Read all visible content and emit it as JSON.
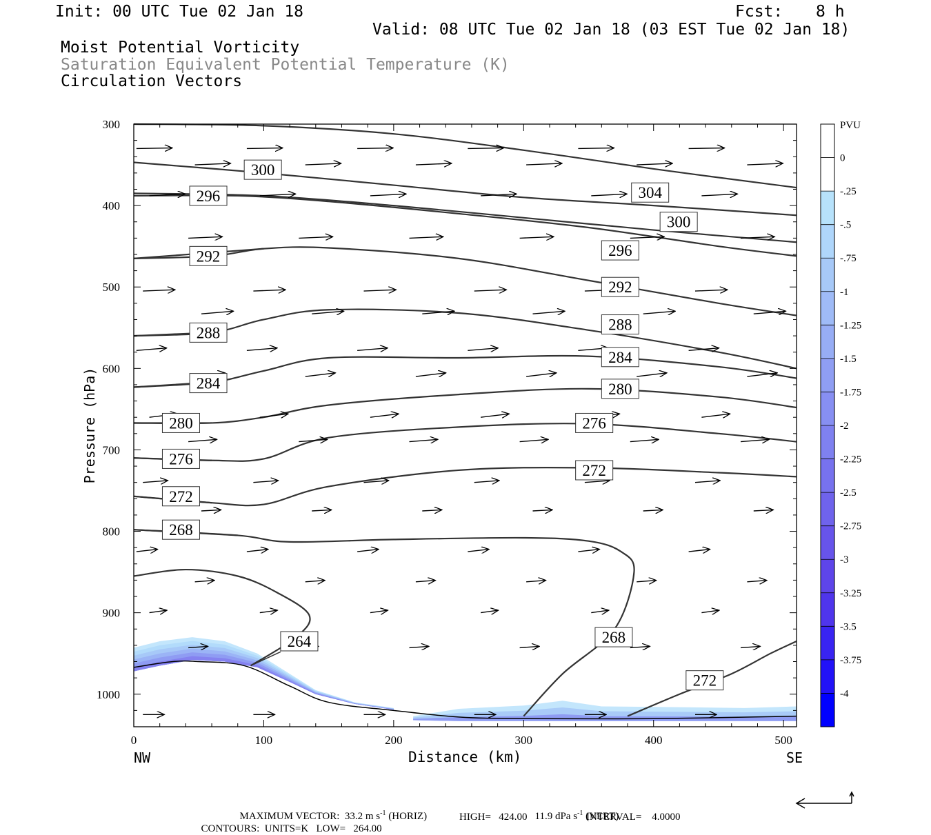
{
  "header": {
    "init": "Init: 00 UTC Tue 02 Jan 18",
    "fcst_label": "Fcst:",
    "fcst_value": "8 h",
    "valid": "Valid: 08 UTC Tue 02 Jan 18 (03 EST Tue 02 Jan 18)",
    "field1": "Moist Potential Vorticity",
    "field2": "Saturation Equivalent Potential Temperature (K)",
    "field3": "Circulation Vectors"
  },
  "chart_data": {
    "type": "cross-section",
    "xlabel": "Distance (km)",
    "ylabel": "Pressure (hPa)",
    "xlim": [
      0,
      510
    ],
    "ylim": [
      1040,
      300
    ],
    "x_ticks": [
      0,
      100,
      200,
      300,
      400,
      500
    ],
    "y_ticks": [
      300,
      400,
      500,
      600,
      700,
      800,
      900,
      1000
    ],
    "x_end_labels": [
      "NW",
      "SE"
    ],
    "contours": [
      {
        "label": "304",
        "label_pos": [
          383,
          384
        ],
        "points": [
          [
            0,
            300
          ],
          [
            100,
            302
          ],
          [
            200,
            312
          ],
          [
            300,
            332
          ],
          [
            400,
            355
          ],
          [
            510,
            378
          ]
        ]
      },
      {
        "label": "300",
        "label_pos": [
          85,
          356
        ],
        "points": [
          [
            0,
            347
          ],
          [
            100,
            360
          ],
          [
            200,
            375
          ],
          [
            300,
            390
          ],
          [
            400,
            400
          ],
          [
            510,
            412
          ]
        ]
      },
      {
        "label": "300",
        "label_pos": [
          405,
          420
        ],
        "points": [
          [
            0,
            385
          ],
          [
            100,
            388
          ],
          [
            200,
            400
          ],
          [
            300,
            415
          ],
          [
            400,
            430
          ],
          [
            510,
            445
          ]
        ]
      },
      {
        "label": "296",
        "label_pos": [
          43,
          388
        ],
        "points": [
          [
            0,
            388
          ],
          [
            80,
            388
          ],
          [
            150,
            395
          ],
          [
            250,
            410
          ],
          [
            350,
            427
          ],
          [
            450,
            450
          ],
          [
            510,
            462
          ]
        ]
      },
      {
        "label": "296",
        "label_pos": [
          360,
          455
        ],
        "points": [
          [
            0,
            465
          ],
          [
            60,
            462
          ],
          [
            100,
            453
          ],
          [
            150,
            452
          ],
          [
            250,
            465
          ],
          [
            350,
            492
          ],
          [
            450,
            520
          ],
          [
            510,
            535
          ]
        ]
      },
      {
        "label": "292",
        "label_pos": [
          43,
          462
        ],
        "points": [
          [
            0,
            465
          ],
          [
            100,
            453
          ]
        ]
      },
      {
        "label": "292",
        "label_pos": [
          360,
          500
        ],
        "points": [
          [
            0,
            560
          ],
          [
            60,
            556
          ],
          [
            100,
            540
          ],
          [
            150,
            528
          ],
          [
            250,
            532
          ],
          [
            350,
            553
          ],
          [
            450,
            580
          ],
          [
            510,
            600
          ]
        ]
      },
      {
        "label": "288",
        "label_pos": [
          43,
          556
        ],
        "points": [
          [
            0,
            560
          ],
          [
            60,
            556
          ]
        ]
      },
      {
        "label": "288",
        "label_pos": [
          360,
          546
        ],
        "points": [
          [
            0,
            623
          ],
          [
            60,
            617
          ],
          [
            100,
            603
          ],
          [
            150,
            587
          ],
          [
            250,
            587
          ],
          [
            350,
            585
          ],
          [
            450,
            598
          ],
          [
            510,
            612
          ]
        ]
      },
      {
        "label": "284",
        "label_pos": [
          43,
          618
        ],
        "points": [
          [
            0,
            623
          ],
          [
            60,
            617
          ]
        ]
      },
      {
        "label": "284",
        "label_pos": [
          360,
          586
        ],
        "points": [
          [
            0,
            667
          ],
          [
            60,
            667
          ],
          [
            100,
            660
          ],
          [
            150,
            645
          ],
          [
            250,
            632
          ],
          [
            350,
            625
          ],
          [
            450,
            635
          ],
          [
            510,
            648
          ]
        ]
      },
      {
        "label": "280",
        "label_pos": [
          22,
          667
        ],
        "points": [
          [
            0,
            667
          ],
          [
            60,
            667
          ]
        ]
      },
      {
        "label": "280",
        "label_pos": [
          360,
          625
        ],
        "points": [
          [
            0,
            710
          ],
          [
            60,
            713
          ],
          [
            100,
            711
          ],
          [
            150,
            685
          ],
          [
            250,
            672
          ],
          [
            350,
            668
          ],
          [
            450,
            680
          ],
          [
            510,
            690
          ]
        ]
      },
      {
        "label": "276",
        "label_pos": [
          22,
          711
        ],
        "points": [
          [
            0,
            710
          ],
          [
            60,
            713
          ]
        ]
      },
      {
        "label": "276",
        "label_pos": [
          340,
          667
        ],
        "points": [
          [
            0,
            757
          ],
          [
            60,
            765
          ],
          [
            100,
            767
          ],
          [
            150,
            745
          ],
          [
            250,
            725
          ],
          [
            350,
            722
          ],
          [
            450,
            728
          ],
          [
            510,
            733
          ]
        ]
      },
      {
        "label": "272",
        "label_pos": [
          22,
          757
        ],
        "points": [
          [
            0,
            757
          ],
          [
            60,
            765
          ]
        ]
      },
      {
        "label": "272",
        "label_pos": [
          340,
          725
        ],
        "points": [
          [
            0,
            798
          ],
          [
            80,
            805
          ],
          [
            120,
            813
          ],
          [
            200,
            810
          ],
          [
            300,
            808
          ],
          [
            350,
            812
          ],
          [
            375,
            825
          ],
          [
            385,
            850
          ],
          [
            370,
            920
          ],
          [
            330,
            975
          ],
          [
            300,
            1027
          ]
        ]
      },
      {
        "label": "268",
        "label_pos": [
          22,
          798
        ],
        "points": [
          [
            0,
            798
          ],
          [
            80,
            805
          ]
        ]
      },
      {
        "label": "268",
        "label_pos": [
          355,
          930
        ],
        "points": [
          [
            0,
            855
          ],
          [
            40,
            847
          ],
          [
            80,
            855
          ],
          [
            110,
            875
          ],
          [
            135,
            903
          ],
          [
            125,
            930
          ],
          [
            90,
            965
          ]
        ]
      },
      {
        "label": "264",
        "label_pos": [
          113,
          935
        ],
        "points": [
          [
            90,
            965
          ]
        ]
      },
      {
        "label": "272",
        "label_pos": [
          425,
          983
        ],
        "points": [
          [
            380,
            1027
          ],
          [
            420,
            1000
          ],
          [
            460,
            975
          ],
          [
            490,
            950
          ],
          [
            510,
            935
          ]
        ]
      }
    ],
    "mpv_colorbar": {
      "unit": "PVU",
      "levels": [
        "0",
        "-.25",
        "-.5",
        "-.75",
        "-1",
        "-1.25",
        "-1.5",
        "-1.75",
        "-2",
        "-2.25",
        "-2.5",
        "-2.75",
        "-3",
        "-3.25",
        "-3.5",
        "-3.75",
        "-4"
      ]
    },
    "vectors": {
      "max_vector_label": "MAXIMUM VECTOR:",
      "max_horiz": "33.2 m s",
      "max_horiz_unit": "-1",
      "max_horiz_tag": "(HORIZ)",
      "max_vert": "11.9 dPa s",
      "max_vert_unit": "-1",
      "max_vert_tag": "(VERT)"
    },
    "contour_info": {
      "label": "CONTOURS:",
      "units": "UNITS=K",
      "low": "LOW=   264.00",
      "high": "HIGH=   424.00",
      "interval": "INTERVAL=    4.0000"
    }
  },
  "colors": {
    "contour": "#333333",
    "mpv_light": "#b7e2fb",
    "mpv_dark": "#0000ff"
  }
}
